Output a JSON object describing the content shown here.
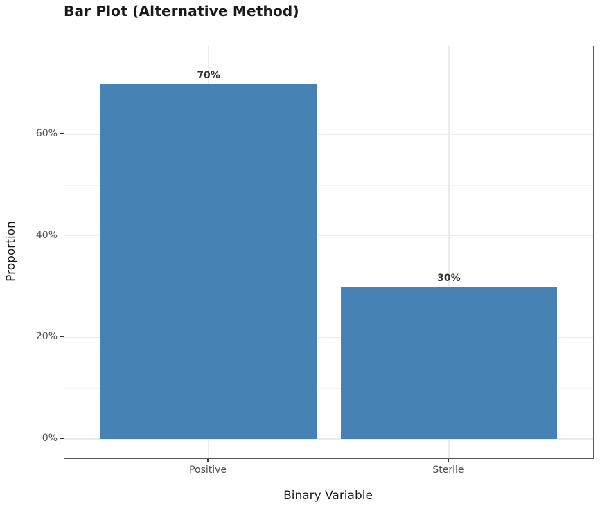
{
  "chart_data": {
    "type": "bar",
    "title": "Bar Plot (Alternative Method)",
    "xlabel": "Binary Variable",
    "ylabel": "Proportion",
    "categories": [
      "Positive",
      "Sterile"
    ],
    "values": [
      70,
      30
    ],
    "value_labels": [
      "70%",
      "30%"
    ],
    "y_major_ticks": [
      0,
      20,
      40,
      60
    ],
    "y_tick_labels": [
      "0%",
      "20%",
      "40%",
      "60%"
    ],
    "y_minor_ticks": [
      10,
      30,
      50,
      70
    ],
    "ylim": [
      -3.8,
      77.3
    ],
    "bar_color": "#4682B4",
    "bar_width_ratio": 0.9,
    "category_padding": 0.6,
    "grid": "horizontal major+minor, vertical at categories",
    "legend": "none"
  }
}
